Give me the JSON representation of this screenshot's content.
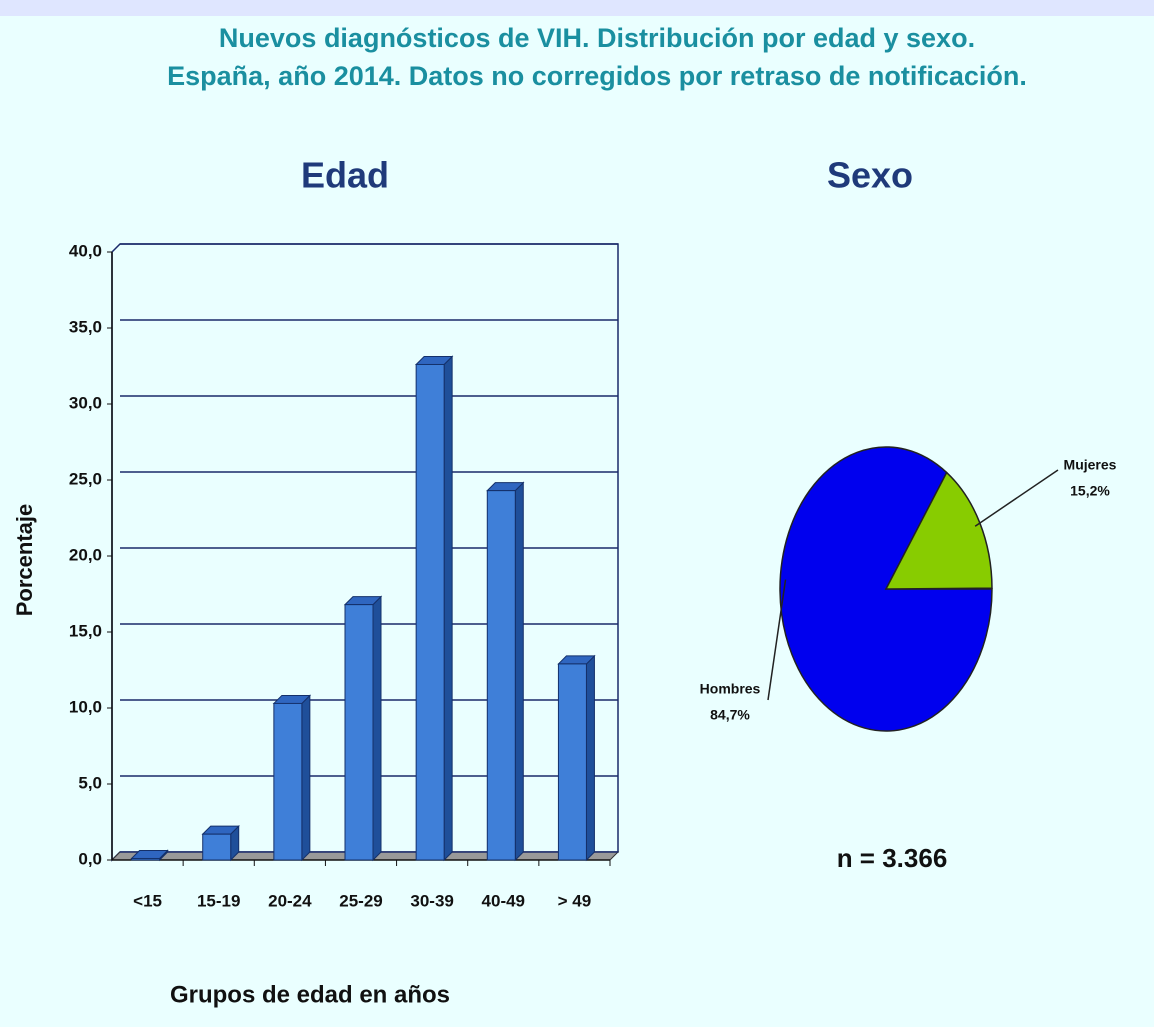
{
  "header": {
    "lines": [
      "Nuevos diagnósticos de VIH. Distribución por edad y sexo.",
      "España, año 2014. Datos no corregidos por retraso de notificación."
    ]
  },
  "chart_data": [
    {
      "type": "bar",
      "title": "Edad",
      "xlabel": "Grupos de edad en años",
      "ylabel": "Porcentaje",
      "categories": [
        "<15",
        "15-19",
        "20-24",
        "25-29",
        "30-39",
        "40-49",
        "> 49"
      ],
      "values": [
        0.1,
        1.7,
        10.3,
        16.8,
        32.6,
        24.3,
        12.9
      ],
      "color": "#3f7fd8",
      "ylim": [
        0,
        40
      ],
      "yticks": [
        {
          "value": 0,
          "label": "0,0"
        },
        {
          "value": 5,
          "label": "5,0"
        },
        {
          "value": 10,
          "label": "10,0"
        },
        {
          "value": 15,
          "label": "15,0"
        },
        {
          "value": 20,
          "label": "20,0"
        },
        {
          "value": 25,
          "label": "25,0"
        },
        {
          "value": 30,
          "label": "30,0"
        },
        {
          "value": 35,
          "label": "35,0"
        },
        {
          "value": 40,
          "label": "40,0"
        }
      ],
      "grid": true
    },
    {
      "type": "pie",
      "title": "Sexo",
      "categories": [
        "Hombres",
        "Mujeres"
      ],
      "values": [
        84.7,
        15.2
      ],
      "value_labels": [
        "84,7%",
        "15,2%"
      ],
      "colors": [
        "#0000ee",
        "#88cc00"
      ],
      "annotation": "n = 3.366"
    }
  ]
}
